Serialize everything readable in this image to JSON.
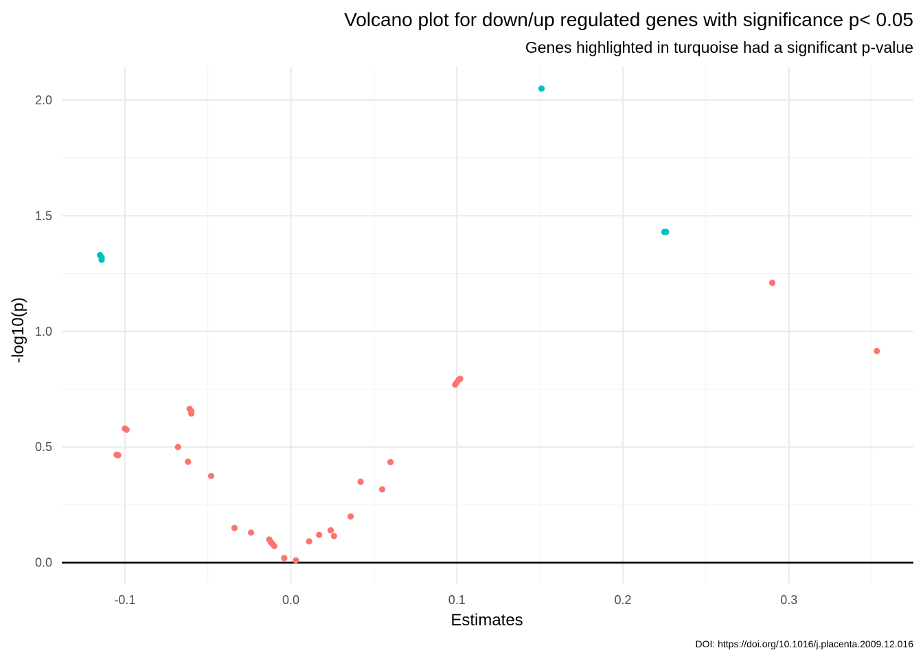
{
  "chart_data": {
    "type": "scatter",
    "title": "Volcano plot for down/up regulated genes with significance p< 0.05",
    "subtitle": "Genes highlighted in turquoise had a significant p-value",
    "xlabel": "Estimates",
    "ylabel": "-log10(p)",
    "caption": "DOI: https://doi.org/10.1016/j.placenta.2009.12.016",
    "xlim": [
      -0.138,
      0.375
    ],
    "ylim": [
      -0.09,
      2.145
    ],
    "x_ticks": [
      {
        "value": -0.1,
        "label": "-0.1"
      },
      {
        "value": 0.0,
        "label": "0.0"
      },
      {
        "value": 0.1,
        "label": "0.1"
      },
      {
        "value": 0.2,
        "label": "0.2"
      },
      {
        "value": 0.3,
        "label": "0.3"
      }
    ],
    "y_ticks": [
      {
        "value": 0.0,
        "label": "0.0"
      },
      {
        "value": 0.5,
        "label": "0.5"
      },
      {
        "value": 1.0,
        "label": "1.0"
      },
      {
        "value": 1.5,
        "label": "1.5"
      },
      {
        "value": 2.0,
        "label": "2.0"
      }
    ],
    "x_minor_ticks": [
      -0.05,
      0.05,
      0.15,
      0.25,
      0.35
    ],
    "y_minor_ticks": [
      0.25,
      0.75,
      1.25,
      1.75
    ],
    "grid": true,
    "hline_at": 0,
    "legend": "none",
    "colors": {
      "significant": "#00BFC4",
      "not_significant": "#F8766D"
    },
    "series": [
      {
        "points": [
          {
            "x": -0.115,
            "y": 1.33
          },
          {
            "x": -0.114,
            "y": 1.32
          },
          {
            "x": -0.114,
            "y": 1.31
          },
          {
            "x": 0.151,
            "y": 2.05
          },
          {
            "x": 0.225,
            "y": 1.43
          },
          {
            "x": 0.226,
            "y": 1.43
          }
        ]
      },
      {
        "points": [
          {
            "x": -0.105,
            "y": 0.467
          },
          {
            "x": -0.104,
            "y": 0.465
          },
          {
            "x": -0.1,
            "y": 0.58
          },
          {
            "x": -0.099,
            "y": 0.575
          },
          {
            "x": -0.068,
            "y": 0.5
          },
          {
            "x": -0.061,
            "y": 0.665
          },
          {
            "x": -0.06,
            "y": 0.655
          },
          {
            "x": -0.06,
            "y": 0.645
          },
          {
            "x": -0.062,
            "y": 0.437
          },
          {
            "x": -0.048,
            "y": 0.375
          },
          {
            "x": -0.034,
            "y": 0.15
          },
          {
            "x": -0.024,
            "y": 0.13
          },
          {
            "x": -0.013,
            "y": 0.1
          },
          {
            "x": -0.012,
            "y": 0.088
          },
          {
            "x": -0.011,
            "y": 0.08
          },
          {
            "x": -0.01,
            "y": 0.072
          },
          {
            "x": -0.004,
            "y": 0.02
          },
          {
            "x": 0.003,
            "y": 0.01
          },
          {
            "x": 0.011,
            "y": 0.092
          },
          {
            "x": 0.017,
            "y": 0.12
          },
          {
            "x": 0.024,
            "y": 0.14
          },
          {
            "x": 0.026,
            "y": 0.115
          },
          {
            "x": 0.036,
            "y": 0.2
          },
          {
            "x": 0.042,
            "y": 0.35
          },
          {
            "x": 0.055,
            "y": 0.317
          },
          {
            "x": 0.06,
            "y": 0.435
          },
          {
            "x": 0.099,
            "y": 0.77
          },
          {
            "x": 0.1,
            "y": 0.78
          },
          {
            "x": 0.101,
            "y": 0.79
          },
          {
            "x": 0.102,
            "y": 0.795
          },
          {
            "x": 0.29,
            "y": 1.21
          },
          {
            "x": 0.353,
            "y": 0.915
          }
        ]
      }
    ]
  }
}
